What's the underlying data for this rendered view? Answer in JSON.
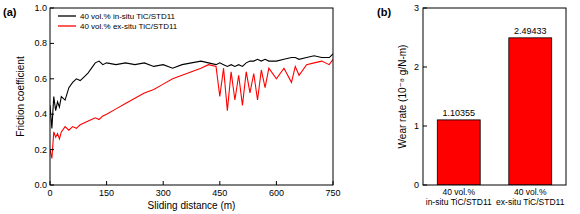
{
  "chart_data": [
    {
      "type": "line",
      "title": "(a)",
      "x_label": "Sliding distance (m)",
      "y_label": "Friction coefficient",
      "x": [
        0,
        5,
        10,
        15,
        20,
        25,
        30,
        40,
        50,
        60,
        70,
        80,
        90,
        100,
        110,
        120,
        130,
        140,
        150,
        175,
        200,
        225,
        250,
        275,
        300,
        325,
        350,
        375,
        400,
        420,
        440,
        450,
        460,
        470,
        480,
        490,
        500,
        510,
        520,
        530,
        540,
        550,
        560,
        570,
        580,
        600,
        620,
        640,
        650,
        660,
        680,
        700,
        720,
        740,
        750
      ],
      "series": [
        {
          "name": "40 vol.% in-situ TiC/STD11",
          "color": "#000000",
          "line_style": "solid",
          "values": [
            0.45,
            0.32,
            0.5,
            0.42,
            0.47,
            0.44,
            0.5,
            0.48,
            0.55,
            0.58,
            0.6,
            0.59,
            0.61,
            0.63,
            0.66,
            0.69,
            0.7,
            0.68,
            0.69,
            0.68,
            0.69,
            0.68,
            0.69,
            0.67,
            0.68,
            0.66,
            0.68,
            0.69,
            0.7,
            0.69,
            0.68,
            0.69,
            0.68,
            0.67,
            0.68,
            0.67,
            0.68,
            0.67,
            0.69,
            0.7,
            0.7,
            0.71,
            0.7,
            0.71,
            0.7,
            0.7,
            0.71,
            0.72,
            0.72,
            0.71,
            0.72,
            0.73,
            0.72,
            0.72,
            0.74
          ]
        },
        {
          "name": "40 vol.% ex-situ TiC/STD11",
          "color": "#ff0000",
          "line_style": "solid",
          "values": [
            0.2,
            0.15,
            0.3,
            0.27,
            0.29,
            0.26,
            0.3,
            0.33,
            0.31,
            0.33,
            0.32,
            0.34,
            0.35,
            0.36,
            0.37,
            0.38,
            0.37,
            0.39,
            0.4,
            0.43,
            0.46,
            0.49,
            0.52,
            0.54,
            0.57,
            0.6,
            0.62,
            0.64,
            0.66,
            0.68,
            0.67,
            0.5,
            0.66,
            0.42,
            0.64,
            0.48,
            0.62,
            0.45,
            0.64,
            0.52,
            0.63,
            0.48,
            0.65,
            0.55,
            0.66,
            0.6,
            0.66,
            0.58,
            0.67,
            0.62,
            0.68,
            0.69,
            0.7,
            0.68,
            0.71
          ]
        }
      ],
      "xlim": [
        0,
        750
      ],
      "xticks": [
        0,
        150,
        300,
        450,
        600,
        750
      ],
      "ylim": [
        0,
        1.0
      ],
      "yticks": [
        {
          "value": 0,
          "label": "0.0"
        },
        0.2,
        0.4,
        0.6,
        0.8,
        {
          "value": 1.0,
          "label": "1.0"
        }
      ],
      "legend": "upper left",
      "grid": false
    },
    {
      "type": "bar",
      "title": "(b)",
      "y_label": "Wear rate (10⁻⁸ g/N-m)",
      "categories": [
        "40 vol.%\nin-situ TiC/STD11",
        "40 vol.%\nex-situ TiC/STD11"
      ],
      "values": [
        1.10355,
        2.49433
      ],
      "color": "#ff0000",
      "ylim": [
        0,
        3
      ],
      "yticks": [
        0,
        1,
        2,
        3
      ],
      "data_labels": true,
      "grid": false
    }
  ]
}
